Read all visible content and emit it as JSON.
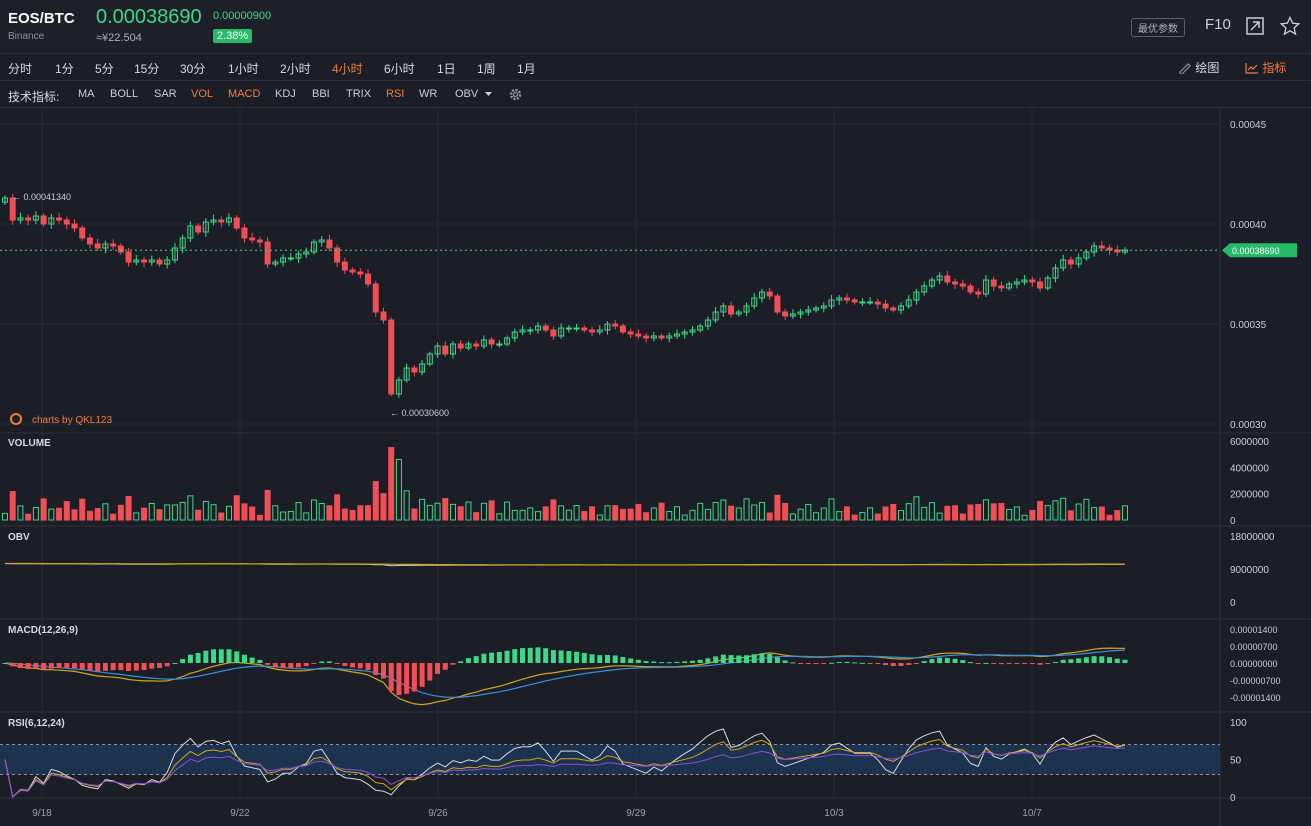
{
  "header": {
    "pair": "EOS/BTC",
    "exchange": "Binance",
    "price": "0.00038690",
    "change": "0.00000900",
    "cny": "≈¥22.504",
    "percent": "2.38%",
    "best_params": "最优参数",
    "f10": "F10"
  },
  "timeframes": [
    "分时",
    "1分",
    "5分",
    "15分",
    "30分",
    "1小时",
    "2小时",
    "4小时",
    "6小时",
    "1日",
    "1周",
    "1月"
  ],
  "active_timeframe": "4小时",
  "toolbar": {
    "draw": "绘图",
    "indicator": "指标"
  },
  "indicator_bar": {
    "label": "技术指标:",
    "items": [
      "MA",
      "BOLL",
      "SAR",
      "VOL",
      "MACD",
      "KDJ",
      "BBI",
      "TRIX",
      "RSI",
      "WR",
      "OBV"
    ],
    "active": [
      "VOL",
      "MACD",
      "RSI"
    ]
  },
  "colors": {
    "up": "#3ed889",
    "down": "#f24e55",
    "accent": "#f07d3a",
    "bg": "#1b1e27",
    "grid": "#262a34"
  },
  "chart_data": {
    "type": "candlestick",
    "last_price_label": "0.00038690",
    "high_label": "0.00041340",
    "low_label": "0.00030600",
    "watermark": "charts by QKL123",
    "x_ticks": [
      "9/18",
      "9/22",
      "9/26",
      "9/29",
      "10/3",
      "10/7"
    ],
    "price_ticks": [
      "0.00045",
      "0.00040",
      "0.00035",
      "0.00030"
    ],
    "volume": {
      "title": "VOLUME",
      "ticks": [
        "6000000",
        "4000000",
        "2000000",
        "0"
      ]
    },
    "obv": {
      "title": "OBV",
      "ticks": [
        "18000000",
        "9000000",
        "0"
      ]
    },
    "macd": {
      "title": "MACD(12,26,9)",
      "ticks": [
        "0.00001400",
        "0.00000700",
        "0.00000000",
        "-0.00000700",
        "-0.00001400"
      ]
    },
    "rsi": {
      "title": "RSI(6,12,24)",
      "ticks": [
        "100",
        "50",
        "0"
      ]
    },
    "closes": [
      0.000413,
      0.000402,
      0.000403,
      0.000402,
      0.000404,
      0.0004,
      0.000403,
      0.000402,
      0.0004,
      0.000398,
      0.000393,
      0.00039,
      0.000388,
      0.00039,
      0.000389,
      0.000386,
      0.000381,
      0.000382,
      0.000381,
      0.000382,
      0.00038,
      0.000382,
      0.000388,
      0.000393,
      0.000399,
      0.000396,
      0.000401,
      0.000402,
      0.000401,
      0.000403,
      0.000398,
      0.000393,
      0.000392,
      0.000391,
      0.00038,
      0.000381,
      0.000383,
      0.000383,
      0.000385,
      0.000386,
      0.000391,
      0.000392,
      0.000388,
      0.000381,
      0.000377,
      0.000376,
      0.000375,
      0.00037,
      0.000356,
      0.000352,
      0.000315,
      0.000322,
      0.000328,
      0.000326,
      0.00033,
      0.000335,
      0.000339,
      0.000335,
      0.00034,
      0.000338,
      0.00034,
      0.000339,
      0.000342,
      0.00034,
      0.00034,
      0.000343,
      0.000346,
      0.000347,
      0.000347,
      0.000349,
      0.000347,
      0.000344,
      0.000348,
      0.000348,
      0.000348,
      0.000347,
      0.000346,
      0.000347,
      0.00035,
      0.000349,
      0.000346,
      0.000345,
      0.000344,
      0.000343,
      0.000344,
      0.000343,
      0.000344,
      0.000345,
      0.000346,
      0.000347,
      0.000349,
      0.000352,
      0.000356,
      0.000359,
      0.000355,
      0.000356,
      0.000359,
      0.000363,
      0.000366,
      0.000364,
      0.000356,
      0.000354,
      0.000355,
      0.000356,
      0.000357,
      0.000358,
      0.000359,
      0.000362,
      0.000363,
      0.000362,
      0.000361,
      0.000361,
      0.000361,
      0.00036,
      0.000358,
      0.000357,
      0.000359,
      0.000362,
      0.000366,
      0.000369,
      0.000372,
      0.000374,
      0.000371,
      0.00037,
      0.000369,
      0.000366,
      0.000365,
      0.000372,
      0.000369,
      0.000368,
      0.00037,
      0.000371,
      0.000372,
      0.000371,
      0.000368,
      0.000373,
      0.000378,
      0.000382,
      0.00038,
      0.000383,
      0.000386,
      0.000389,
      0.000388,
      0.000387,
      0.000386,
      0.000387
    ]
  }
}
